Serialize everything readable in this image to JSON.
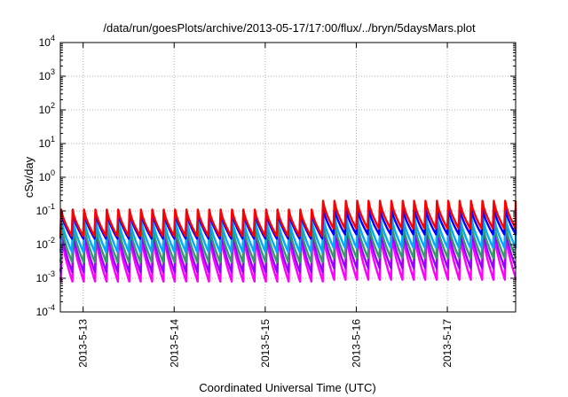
{
  "chart_data": {
    "type": "line",
    "title": "/data/run/goesPlots/archive/2013-05-17/17:00/flux/../bryn/5daysMars.plot",
    "xlabel": "Coordinated Universal Time (UTC)",
    "ylabel": "cSv/day",
    "yscale": "log",
    "ylim": [
      0.0001,
      10000
    ],
    "y_ticks": [
      {
        "base": "10",
        "exp": "-4"
      },
      {
        "base": "10",
        "exp": "-3"
      },
      {
        "base": "10",
        "exp": "-2"
      },
      {
        "base": "10",
        "exp": "-1"
      },
      {
        "base": "10",
        "exp": "0"
      },
      {
        "base": "10",
        "exp": "1"
      },
      {
        "base": "10",
        "exp": "2"
      },
      {
        "base": "10",
        "exp": "3"
      },
      {
        "base": "10",
        "exp": "4"
      }
    ],
    "x_range": [
      "2013-05-12T18:00",
      "2013-05-17T18:00"
    ],
    "x_ticks": [
      "2013-5-13",
      "2013-5-14",
      "2013-5-15",
      "2013-5-16",
      "2013-5-17"
    ],
    "x_tick_dates": [
      "2013-05-13T00:00",
      "2013-05-14T00:00",
      "2013-05-15T00:00",
      "2013-05-16T00:00",
      "2013-05-17T00:00"
    ],
    "grid": true,
    "sawtooth_period_hours": 3,
    "series": [
      {
        "color": "#ff0000",
        "peak_before": 0.11,
        "trough_before": 0.018,
        "peak_after": 0.2,
        "trough_after": 0.03,
        "phase": 0.0
      },
      {
        "color": "#0000ff",
        "peak_before": 0.09,
        "trough_before": 0.015,
        "peak_after": 0.12,
        "trough_after": 0.02,
        "phase": 0.01
      },
      {
        "color": "#00aaff",
        "peak_before": 0.06,
        "trough_before": 0.006,
        "peak_after": 0.07,
        "trough_after": 0.008,
        "phase": 0.02
      },
      {
        "color": "#339966",
        "peak_before": 0.035,
        "trough_before": 0.003,
        "peak_after": 0.04,
        "trough_after": 0.004,
        "phase": 0.04
      },
      {
        "color": "#9900ff",
        "peak_before": 0.025,
        "trough_before": 0.0015,
        "peak_after": 0.028,
        "trough_after": 0.002,
        "phase": 0.05
      },
      {
        "color": "#ff00ff",
        "peak_before": 0.018,
        "trough_before": 0.0008,
        "peak_after": 0.02,
        "trough_after": 0.0009,
        "phase": 0.06
      }
    ],
    "step_change_at": "2013-05-15T15:00"
  }
}
